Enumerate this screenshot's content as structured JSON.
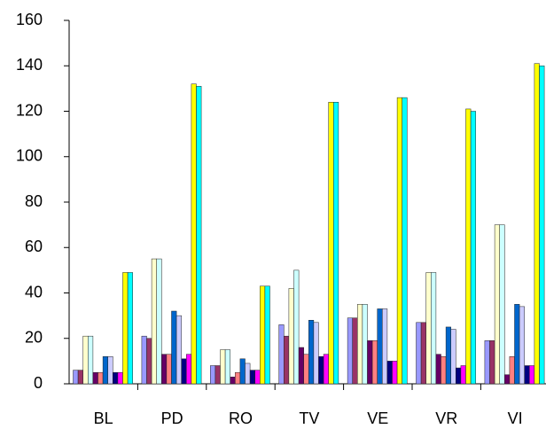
{
  "chart_data": {
    "type": "bar",
    "categories": [
      "BL",
      "PD",
      "RO",
      "TV",
      "VE",
      "VR",
      "VI"
    ],
    "series": [
      {
        "color": "#9999ff",
        "values": [
          6,
          21,
          8,
          26,
          29,
          27,
          19
        ]
      },
      {
        "color": "#993366",
        "values": [
          6,
          20,
          8,
          21,
          29,
          27,
          19
        ]
      },
      {
        "color": "#ffffcc",
        "values": [
          21,
          55,
          15,
          42,
          35,
          49,
          70
        ]
      },
      {
        "color": "#ccffff",
        "values": [
          21,
          55,
          15,
          50,
          35,
          49,
          70
        ]
      },
      {
        "color": "#660066",
        "values": [
          5,
          13,
          3,
          16,
          19,
          13,
          4
        ]
      },
      {
        "color": "#ff8080",
        "values": [
          5,
          13,
          5,
          13,
          19,
          12,
          12
        ]
      },
      {
        "color": "#0066cc",
        "values": [
          12,
          32,
          11,
          28,
          33,
          25,
          35
        ]
      },
      {
        "color": "#ccccff",
        "values": [
          12,
          30,
          9,
          27,
          33,
          24,
          34
        ]
      },
      {
        "color": "#000080",
        "values": [
          5,
          11,
          6,
          12,
          10,
          7,
          8
        ]
      },
      {
        "color": "#ff00ff",
        "values": [
          5,
          13,
          6,
          13,
          10,
          8,
          8
        ]
      },
      {
        "color": "#ffff00",
        "values": [
          49,
          132,
          43,
          124,
          126,
          121,
          141
        ]
      },
      {
        "color": "#00ffff",
        "values": [
          49,
          131,
          43,
          124,
          126,
          120,
          140
        ]
      }
    ],
    "ylim": [
      0,
      160
    ],
    "yticks": [
      0,
      20,
      40,
      60,
      80,
      100,
      120,
      140,
      160
    ],
    "grid": false
  }
}
